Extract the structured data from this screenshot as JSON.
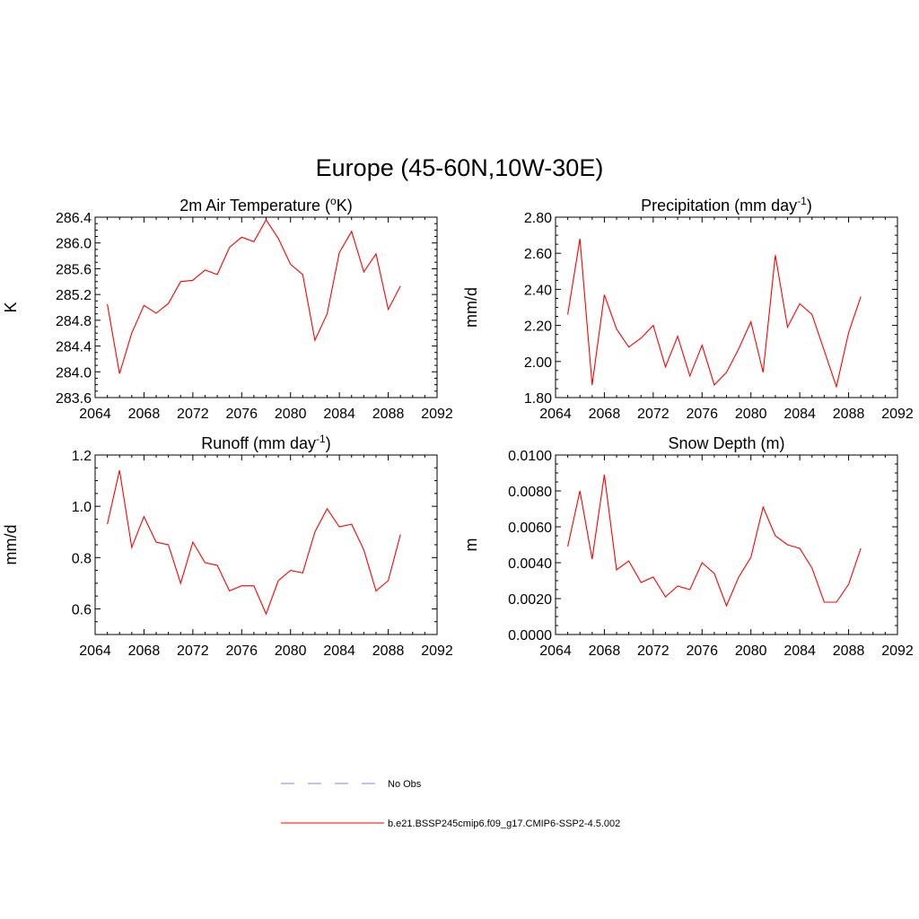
{
  "figure": {
    "title": "Europe (45-60N,10W-30E)"
  },
  "legend": {
    "items": [
      {
        "label": "No Obs",
        "color": "#9999ee",
        "dash": true
      },
      {
        "label": "b.e21.BSSP245cmip6.f09_g17.CMIP6-SSP2-4.5.002",
        "color": "#ff3333",
        "dash": false
      }
    ]
  },
  "chart_data": [
    {
      "type": "line",
      "title": "2m Air Temperature (oK)",
      "title_parts": {
        "before": "2m Air Temperature (",
        "sup": "o",
        "after": "K)"
      },
      "ylabel": "K",
      "xlim": [
        2064,
        2092
      ],
      "ylim": [
        283.6,
        286.4
      ],
      "xticks": [
        2064,
        2068,
        2072,
        2076,
        2080,
        2084,
        2088,
        2092
      ],
      "yticks": [
        "283.6",
        "284.0",
        "284.4",
        "284.8",
        "285.2",
        "285.6",
        "286.0",
        "286.4"
      ],
      "line_color": "#ff0000",
      "x": [
        2065,
        2066,
        2067,
        2068,
        2069,
        2070,
        2071,
        2072,
        2073,
        2074,
        2075,
        2076,
        2077,
        2078,
        2079,
        2080,
        2081,
        2082,
        2083,
        2084,
        2085,
        2086,
        2087,
        2088,
        2089
      ],
      "values": [
        285.05,
        283.97,
        284.6,
        285.03,
        284.91,
        285.06,
        285.4,
        285.42,
        285.58,
        285.51,
        285.93,
        286.09,
        286.02,
        286.36,
        286.07,
        285.67,
        285.51,
        284.49,
        284.9,
        285.85,
        286.18,
        285.55,
        285.83,
        284.97,
        285.33
      ]
    },
    {
      "type": "line",
      "title": "Precipitation (mm day-1)",
      "title_parts": {
        "before": "Precipitation (mm day",
        "sup": "-1",
        "after": ")"
      },
      "ylabel": "mm/d",
      "xlim": [
        2064,
        2092
      ],
      "ylim": [
        1.8,
        2.8
      ],
      "xticks": [
        2064,
        2068,
        2072,
        2076,
        2080,
        2084,
        2088,
        2092
      ],
      "yticks": [
        "1.80",
        "2.00",
        "2.20",
        "2.40",
        "2.60",
        "2.80"
      ],
      "line_color": "#ff0000",
      "x": [
        2065,
        2066,
        2067,
        2068,
        2069,
        2070,
        2071,
        2072,
        2073,
        2074,
        2075,
        2076,
        2077,
        2078,
        2079,
        2080,
        2081,
        2082,
        2083,
        2084,
        2085,
        2086,
        2087,
        2088,
        2089
      ],
      "values": [
        2.26,
        2.68,
        1.87,
        2.37,
        2.18,
        2.08,
        2.13,
        2.2,
        1.97,
        2.14,
        1.92,
        2.09,
        1.87,
        1.94,
        2.07,
        2.22,
        1.94,
        2.59,
        2.19,
        2.32,
        2.26,
        2.06,
        1.86,
        2.16,
        2.36
      ]
    },
    {
      "type": "line",
      "title": "Runoff (mm day-1)",
      "title_parts": {
        "before": "Runoff (mm day",
        "sup": "-1",
        "after": ")"
      },
      "ylabel": "mm/d",
      "xlim": [
        2064,
        2092
      ],
      "ylim": [
        0.5,
        1.2
      ],
      "xticks": [
        2064,
        2068,
        2072,
        2076,
        2080,
        2084,
        2088,
        2092
      ],
      "yticks": [
        "0.6",
        "0.8",
        "1.0",
        "1.2"
      ],
      "line_color": "#ff0000",
      "x": [
        2065,
        2066,
        2067,
        2068,
        2069,
        2070,
        2071,
        2072,
        2073,
        2074,
        2075,
        2076,
        2077,
        2078,
        2079,
        2080,
        2081,
        2082,
        2083,
        2084,
        2085,
        2086,
        2087,
        2088,
        2089
      ],
      "values": [
        0.93,
        1.14,
        0.84,
        0.96,
        0.86,
        0.85,
        0.7,
        0.86,
        0.78,
        0.77,
        0.67,
        0.69,
        0.69,
        0.58,
        0.71,
        0.75,
        0.74,
        0.9,
        0.99,
        0.92,
        0.93,
        0.83,
        0.67,
        0.71,
        0.89
      ]
    },
    {
      "type": "line",
      "title": "Snow Depth (m)",
      "title_parts": {
        "before": "Snow Depth (m)",
        "sup": "",
        "after": ""
      },
      "ylabel": "m",
      "xlim": [
        2064,
        2092
      ],
      "ylim": [
        0.0,
        0.01
      ],
      "xticks": [
        2064,
        2068,
        2072,
        2076,
        2080,
        2084,
        2088,
        2092
      ],
      "yticks": [
        "0.0000",
        "0.0020",
        "0.0040",
        "0.0060",
        "0.0080",
        "0.0100"
      ],
      "line_color": "#ff0000",
      "x": [
        2065,
        2066,
        2067,
        2068,
        2069,
        2070,
        2071,
        2072,
        2073,
        2074,
        2075,
        2076,
        2077,
        2078,
        2079,
        2080,
        2081,
        2082,
        2083,
        2084,
        2085,
        2086,
        2087,
        2088,
        2089
      ],
      "values": [
        0.0049,
        0.008,
        0.0042,
        0.0089,
        0.0036,
        0.0041,
        0.0029,
        0.0032,
        0.0021,
        0.0027,
        0.0025,
        0.004,
        0.0034,
        0.0016,
        0.0032,
        0.0043,
        0.0071,
        0.0055,
        0.005,
        0.0048,
        0.0037,
        0.0018,
        0.0018,
        0.0028,
        0.0048
      ]
    }
  ]
}
